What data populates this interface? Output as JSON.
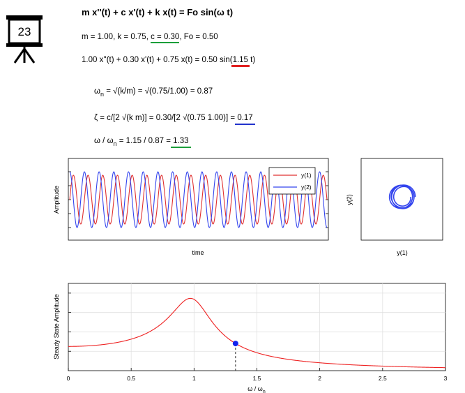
{
  "equation": {
    "title": "m x''(t) + c x'(t) + k x(t) = Fo sin(ω t)",
    "params_prefix": "m = 1.00, k = 0.75, ",
    "params_c": "c = 0.30",
    "params_suffix": ", Fo = 0.50",
    "numeric_prefix": "1.00 x''(t) + 0.30 x'(t) + 0.75 x(t) = 0.50 sin(",
    "numeric_omega": "1.15",
    "numeric_suffix": " t)",
    "wn_label": "ω",
    "wn_sub": "n",
    "wn_rest": " = √(k/m) = √(0.75/1.00) = 0.87",
    "zeta_prefix": "ζ = c/[2 √(k m)] = 0.30/[2 √(0.75 1.00)] = ",
    "zeta_value": "0.17",
    "ratio_label": "ω / ω",
    "ratio_sub": "n",
    "ratio_mid": " = 1.15 / 0.87 = ",
    "ratio_value": "1.33"
  },
  "badge": {
    "number": "23"
  },
  "colors": {
    "green_underline": "#1a9e3a",
    "red_underline": "#e02020",
    "blue_underline": "#2233cc",
    "series1": "#e03030",
    "series2": "#3344ee",
    "response_curve": "#ee2222",
    "marker": "#1122ee"
  },
  "chart_data": [
    {
      "type": "line",
      "ylabel": "Amplitude",
      "xlabel": "time",
      "legend": [
        "y(1)",
        "y(2)"
      ],
      "legend_placement": "top-right",
      "series": [
        {
          "name": "y(1)",
          "kind": "sinusoid",
          "cycles": 17.5,
          "phase": 0.0,
          "amplitude": 0.5
        },
        {
          "name": "y(2)",
          "kind": "sinusoid",
          "cycles": 17.5,
          "phase": 1.5708,
          "amplitude": 0.57
        }
      ],
      "grid": false
    },
    {
      "type": "line",
      "subtype": "phase-portrait",
      "xlabel": "y(1)",
      "ylabel": "y(2)",
      "series": [
        {
          "name": "trajectory",
          "kind": "spiral"
        }
      ],
      "grid": false
    },
    {
      "type": "line",
      "ylabel": "Steady State Amplitude",
      "xlabel": "ω / ω",
      "xlabel_sub": "n",
      "xlim": [
        0,
        3
      ],
      "ylim": [
        0,
        3.6
      ],
      "xticks": [
        "0",
        "0.5",
        "1",
        "1.5",
        "2",
        "2.5",
        "3"
      ],
      "xtick_values": [
        0,
        0.5,
        1,
        1.5,
        2,
        2.5,
        3
      ],
      "zeta": 0.17,
      "curve": "1/sqrt((1-r^2)^2+(2*zeta*r)^2)",
      "marker_x": 1.33,
      "grid": true
    }
  ]
}
